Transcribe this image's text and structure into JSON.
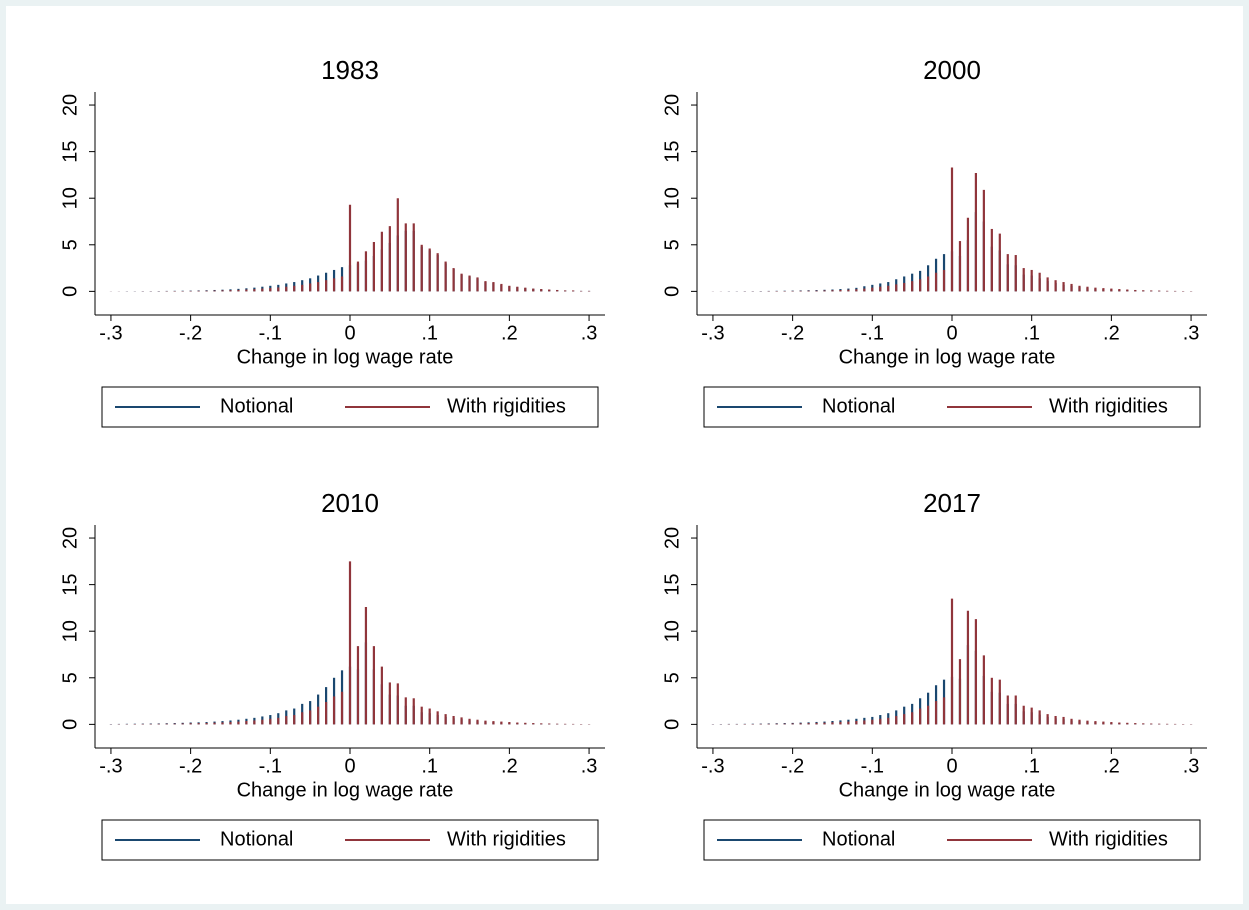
{
  "chart_data": [
    {
      "type": "spike",
      "title": "1983",
      "xlabel": "Change in log wage rate",
      "x": [
        -0.3,
        -0.29,
        -0.28,
        -0.27,
        -0.26,
        -0.25,
        -0.24,
        -0.23,
        -0.22,
        -0.21,
        -0.2,
        -0.19,
        -0.18,
        -0.17,
        -0.16,
        -0.15,
        -0.14,
        -0.13,
        -0.12,
        -0.11,
        -0.1,
        -0.09,
        -0.08,
        -0.07,
        -0.06,
        -0.05,
        -0.04,
        -0.03,
        -0.02,
        -0.01,
        0,
        0.01,
        0.02,
        0.03,
        0.04,
        0.05,
        0.06,
        0.07,
        0.08,
        0.09,
        0.1,
        0.11,
        0.12,
        0.13,
        0.14,
        0.15,
        0.16,
        0.17,
        0.18,
        0.19,
        0.2,
        0.21,
        0.22,
        0.23,
        0.24,
        0.25,
        0.26,
        0.27,
        0.28,
        0.29,
        0.3
      ],
      "series": [
        {
          "name": "Notional",
          "color": "#1a476f",
          "values": [
            0.01,
            0.01,
            0.02,
            0.02,
            0.03,
            0.03,
            0.04,
            0.05,
            0.06,
            0.07,
            0.08,
            0.1,
            0.12,
            0.15,
            0.18,
            0.22,
            0.27,
            0.33,
            0.4,
            0.5,
            0.6,
            0.7,
            0.85,
            1.0,
            1.2,
            1.4,
            1.7,
            2.0,
            2.3,
            2.6,
            2.8,
            3.0,
            3.3,
            3.8,
            4.5,
            5.2,
            6.0,
            6.5,
            6.5,
            4.8,
            4.4,
            3.9,
            3.0,
            2.4,
            1.8,
            1.6,
            1.4,
            1.0,
            0.9,
            0.7,
            0.55,
            0.45,
            0.35,
            0.28,
            0.22,
            0.18,
            0.14,
            0.1,
            0.09,
            0.05,
            0.05
          ]
        },
        {
          "name": "With rigidities",
          "color": "#90353b",
          "values": [
            0.01,
            0.01,
            0.01,
            0.01,
            0.02,
            0.02,
            0.02,
            0.03,
            0.04,
            0.04,
            0.05,
            0.06,
            0.07,
            0.09,
            0.11,
            0.13,
            0.16,
            0.2,
            0.24,
            0.3,
            0.36,
            0.42,
            0.5,
            0.6,
            0.7,
            0.85,
            1.0,
            1.2,
            1.4,
            1.6,
            9.3,
            3.2,
            4.3,
            5.3,
            6.4,
            7.0,
            10.0,
            7.3,
            7.3,
            5.0,
            4.6,
            4.1,
            3.2,
            2.5,
            1.9,
            1.7,
            1.5,
            1.1,
            1.0,
            0.8,
            0.6,
            0.5,
            0.4,
            0.3,
            0.25,
            0.2,
            0.15,
            0.1,
            0.1,
            0.05,
            0.05
          ]
        }
      ],
      "xlim": [
        -0.32,
        0.32
      ],
      "ylim": [
        -2,
        21.4
      ],
      "xticks": [
        {
          "value": -0.3,
          "label": "-.3"
        },
        {
          "value": -0.2,
          "label": "-.2"
        },
        {
          "value": -0.1,
          "label": "-.1"
        },
        0,
        {
          "value": 0.1,
          "label": ".1"
        },
        {
          "value": 0.2,
          "label": ".2"
        },
        {
          "value": 0.3,
          "label": ".3"
        }
      ],
      "yticks": [
        0,
        5,
        10,
        15,
        20
      ],
      "legend": "bottom"
    },
    {
      "type": "spike",
      "title": "2000",
      "xlabel": "Change in log wage rate",
      "x": [
        -0.3,
        -0.29,
        -0.28,
        -0.27,
        -0.26,
        -0.25,
        -0.24,
        -0.23,
        -0.22,
        -0.21,
        -0.2,
        -0.19,
        -0.18,
        -0.17,
        -0.16,
        -0.15,
        -0.14,
        -0.13,
        -0.12,
        -0.11,
        -0.1,
        -0.09,
        -0.08,
        -0.07,
        -0.06,
        -0.05,
        -0.04,
        -0.03,
        -0.02,
        -0.01,
        0,
        0.01,
        0.02,
        0.03,
        0.04,
        0.05,
        0.06,
        0.07,
        0.08,
        0.09,
        0.1,
        0.11,
        0.12,
        0.13,
        0.14,
        0.15,
        0.16,
        0.17,
        0.18,
        0.19,
        0.2,
        0.21,
        0.22,
        0.23,
        0.24,
        0.25,
        0.26,
        0.27,
        0.28,
        0.29,
        0.3
      ],
      "series": [
        {
          "name": "Notional",
          "color": "#1a476f",
          "values": [
            0.01,
            0.01,
            0.02,
            0.02,
            0.03,
            0.03,
            0.04,
            0.05,
            0.06,
            0.07,
            0.08,
            0.1,
            0.12,
            0.14,
            0.17,
            0.2,
            0.25,
            0.3,
            0.38,
            0.55,
            0.7,
            0.85,
            1.0,
            1.3,
            1.6,
            1.9,
            2.2,
            2.8,
            3.5,
            4.0,
            4.3,
            3.8,
            5.5,
            8.5,
            7.5,
            4.8,
            4.4,
            2.9,
            2.8,
            1.8,
            1.7,
            1.4,
            1.1,
            0.9,
            0.7,
            0.6,
            0.45,
            0.38,
            0.3,
            0.25,
            0.22,
            0.18,
            0.15,
            0.11,
            0.09,
            0.07,
            0.06,
            0.04,
            0.04,
            0.03,
            0.02
          ]
        },
        {
          "name": "With rigidities",
          "color": "#90353b",
          "values": [
            0.01,
            0.01,
            0.01,
            0.01,
            0.02,
            0.02,
            0.02,
            0.03,
            0.04,
            0.04,
            0.05,
            0.06,
            0.07,
            0.08,
            0.1,
            0.12,
            0.15,
            0.18,
            0.23,
            0.3,
            0.4,
            0.5,
            0.6,
            0.75,
            0.9,
            1.1,
            1.3,
            1.6,
            2.0,
            2.3,
            13.3,
            5.4,
            7.9,
            12.7,
            10.9,
            6.7,
            6.2,
            4.0,
            3.9,
            2.5,
            2.3,
            2.0,
            1.5,
            1.2,
            1.0,
            0.8,
            0.6,
            0.5,
            0.4,
            0.35,
            0.3,
            0.25,
            0.2,
            0.15,
            0.12,
            0.1,
            0.08,
            0.06,
            0.05,
            0.04,
            0.03
          ]
        }
      ],
      "xlim": [
        -0.32,
        0.32
      ],
      "ylim": [
        -2,
        21.4
      ],
      "xticks": [
        {
          "value": -0.3,
          "label": "-.3"
        },
        {
          "value": -0.2,
          "label": "-.2"
        },
        {
          "value": -0.1,
          "label": "-.1"
        },
        0,
        {
          "value": 0.1,
          "label": ".1"
        },
        {
          "value": 0.2,
          "label": ".2"
        },
        {
          "value": 0.3,
          "label": ".3"
        }
      ],
      "yticks": [
        0,
        5,
        10,
        15,
        20
      ],
      "legend": "bottom"
    },
    {
      "type": "spike",
      "title": "2010",
      "xlabel": "Change in log wage rate",
      "x": [
        -0.3,
        -0.29,
        -0.28,
        -0.27,
        -0.26,
        -0.25,
        -0.24,
        -0.23,
        -0.22,
        -0.21,
        -0.2,
        -0.19,
        -0.18,
        -0.17,
        -0.16,
        -0.15,
        -0.14,
        -0.13,
        -0.12,
        -0.11,
        -0.1,
        -0.09,
        -0.08,
        -0.07,
        -0.06,
        -0.05,
        -0.04,
        -0.03,
        -0.02,
        -0.01,
        0,
        0.01,
        0.02,
        0.03,
        0.04,
        0.05,
        0.06,
        0.07,
        0.08,
        0.09,
        0.1,
        0.11,
        0.12,
        0.13,
        0.14,
        0.15,
        0.16,
        0.17,
        0.18,
        0.19,
        0.2,
        0.21,
        0.22,
        0.23,
        0.24,
        0.25,
        0.26,
        0.27,
        0.28,
        0.29,
        0.3
      ],
      "series": [
        {
          "name": "Notional",
          "color": "#1a476f",
          "values": [
            0.04,
            0.05,
            0.06,
            0.07,
            0.08,
            0.09,
            0.1,
            0.12,
            0.14,
            0.17,
            0.2,
            0.22,
            0.25,
            0.3,
            0.35,
            0.42,
            0.5,
            0.6,
            0.7,
            0.85,
            1.0,
            1.2,
            1.5,
            1.7,
            2.2,
            2.5,
            3.2,
            4.0,
            5.0,
            5.8,
            6.2,
            5.9,
            8.8,
            5.9,
            4.3,
            3.2,
            3.1,
            2.0,
            2.0,
            1.3,
            1.2,
            1.0,
            0.8,
            0.65,
            0.55,
            0.45,
            0.35,
            0.3,
            0.25,
            0.22,
            0.18,
            0.15,
            0.12,
            0.1,
            0.08,
            0.07,
            0.05,
            0.04,
            0.03,
            0.03,
            0.02
          ]
        },
        {
          "name": "With rigidities",
          "color": "#90353b",
          "values": [
            0.02,
            0.03,
            0.03,
            0.04,
            0.05,
            0.05,
            0.06,
            0.07,
            0.08,
            0.1,
            0.12,
            0.13,
            0.15,
            0.18,
            0.21,
            0.25,
            0.3,
            0.36,
            0.42,
            0.5,
            0.6,
            0.7,
            0.9,
            1.0,
            1.3,
            1.5,
            1.9,
            2.4,
            3.0,
            3.5,
            17.5,
            8.4,
            12.6,
            8.4,
            6.2,
            4.5,
            4.4,
            2.9,
            2.8,
            1.9,
            1.7,
            1.4,
            1.1,
            0.9,
            0.75,
            0.6,
            0.5,
            0.4,
            0.35,
            0.3,
            0.25,
            0.2,
            0.17,
            0.14,
            0.11,
            0.09,
            0.07,
            0.06,
            0.05,
            0.04,
            0.03
          ]
        }
      ],
      "xlim": [
        -0.32,
        0.32
      ],
      "ylim": [
        -2,
        21.4
      ],
      "xticks": [
        {
          "value": -0.3,
          "label": "-.3"
        },
        {
          "value": -0.2,
          "label": "-.2"
        },
        {
          "value": -0.1,
          "label": "-.1"
        },
        0,
        {
          "value": 0.1,
          "label": ".1"
        },
        {
          "value": 0.2,
          "label": ".2"
        },
        {
          "value": 0.3,
          "label": ".3"
        }
      ],
      "yticks": [
        0,
        5,
        10,
        15,
        20
      ],
      "legend": "bottom"
    },
    {
      "type": "spike",
      "title": "2017",
      "xlabel": "Change in log wage rate",
      "x": [
        -0.3,
        -0.29,
        -0.28,
        -0.27,
        -0.26,
        -0.25,
        -0.24,
        -0.23,
        -0.22,
        -0.21,
        -0.2,
        -0.19,
        -0.18,
        -0.17,
        -0.16,
        -0.15,
        -0.14,
        -0.13,
        -0.12,
        -0.11,
        -0.1,
        -0.09,
        -0.08,
        -0.07,
        -0.06,
        -0.05,
        -0.04,
        -0.03,
        -0.02,
        -0.01,
        0,
        0.01,
        0.02,
        0.03,
        0.04,
        0.05,
        0.06,
        0.07,
        0.08,
        0.09,
        0.1,
        0.11,
        0.12,
        0.13,
        0.14,
        0.15,
        0.16,
        0.17,
        0.18,
        0.19,
        0.2,
        0.21,
        0.22,
        0.23,
        0.24,
        0.25,
        0.26,
        0.27,
        0.28,
        0.29,
        0.3
      ],
      "series": [
        {
          "name": "Notional",
          "color": "#1a476f",
          "values": [
            0.03,
            0.04,
            0.05,
            0.05,
            0.06,
            0.07,
            0.08,
            0.1,
            0.12,
            0.14,
            0.16,
            0.19,
            0.22,
            0.26,
            0.3,
            0.36,
            0.43,
            0.5,
            0.6,
            0.7,
            0.8,
            1.0,
            1.2,
            1.5,
            1.9,
            2.2,
            2.8,
            3.4,
            4.2,
            4.8,
            5.1,
            4.9,
            8.5,
            7.9,
            5.2,
            3.5,
            3.4,
            2.2,
            2.2,
            1.4,
            1.3,
            1.05,
            0.8,
            0.65,
            0.55,
            0.42,
            0.35,
            0.3,
            0.25,
            0.2,
            0.17,
            0.14,
            0.11,
            0.09,
            0.08,
            0.06,
            0.05,
            0.04,
            0.03,
            0.03,
            0.02
          ]
        },
        {
          "name": "With rigidities",
          "color": "#90353b",
          "values": [
            0.02,
            0.02,
            0.03,
            0.03,
            0.04,
            0.04,
            0.05,
            0.06,
            0.07,
            0.08,
            0.1,
            0.11,
            0.13,
            0.16,
            0.18,
            0.22,
            0.26,
            0.3,
            0.36,
            0.42,
            0.5,
            0.6,
            0.7,
            0.9,
            1.1,
            1.3,
            1.7,
            2.0,
            2.5,
            2.9,
            13.5,
            7.0,
            12.2,
            11.3,
            7.4,
            5.0,
            4.8,
            3.1,
            3.1,
            2.0,
            1.8,
            1.5,
            1.1,
            0.9,
            0.8,
            0.6,
            0.5,
            0.4,
            0.35,
            0.3,
            0.25,
            0.2,
            0.17,
            0.14,
            0.11,
            0.09,
            0.07,
            0.06,
            0.05,
            0.04,
            0.03
          ]
        }
      ],
      "xlim": [
        -0.32,
        0.32
      ],
      "ylim": [
        -2,
        21.4
      ],
      "xticks": [
        {
          "value": -0.3,
          "label": "-.3"
        },
        {
          "value": -0.2,
          "label": "-.2"
        },
        {
          "value": -0.1,
          "label": "-.1"
        },
        0,
        {
          "value": 0.1,
          "label": ".1"
        },
        {
          "value": 0.2,
          "label": ".2"
        },
        {
          "value": 0.3,
          "label": ".3"
        }
      ],
      "yticks": [
        0,
        5,
        10,
        15,
        20
      ],
      "legend": "bottom"
    }
  ]
}
